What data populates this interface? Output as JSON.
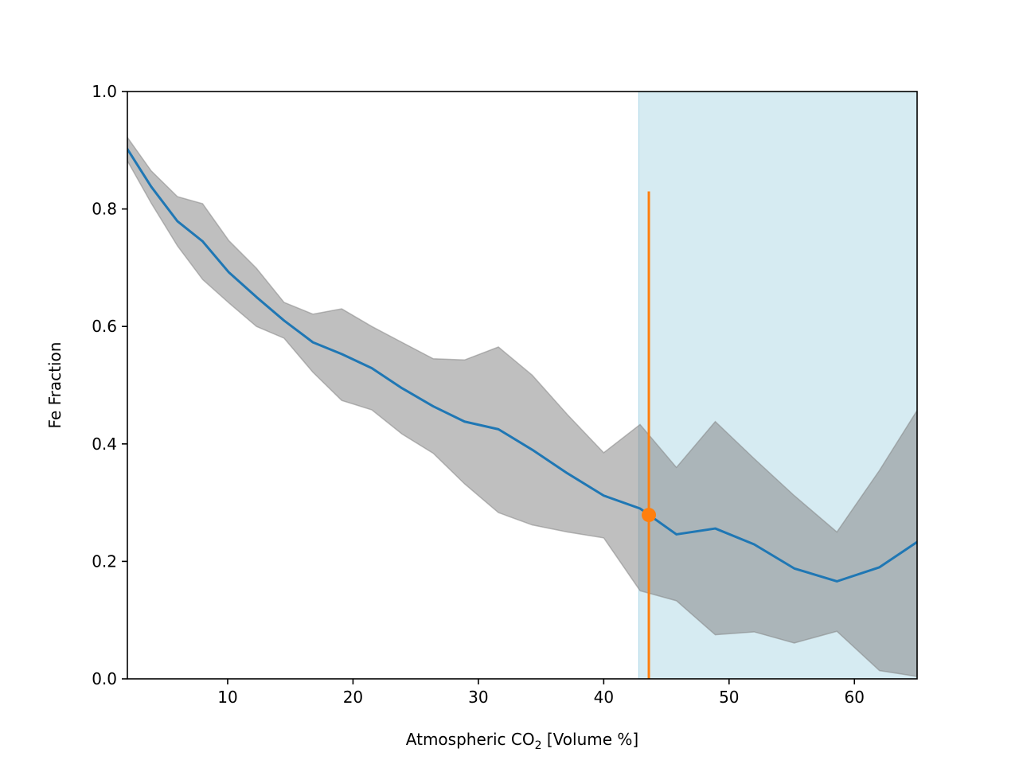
{
  "chart_data": {
    "type": "line",
    "xlabel": {
      "prefix": "Atmospheric CO",
      "subscript": "2",
      "suffix": " [Volume %]"
    },
    "ylabel": "Fe Fraction",
    "xlim": [
      2,
      65
    ],
    "ylim": [
      0.0,
      1.0
    ],
    "xticks": [
      10,
      20,
      30,
      40,
      50,
      60
    ],
    "yticks": [
      0.0,
      0.2,
      0.4,
      0.6,
      0.8,
      1.0
    ],
    "ytick_labels": [
      "0.0",
      "0.2",
      "0.4",
      "0.6",
      "0.8",
      "1.0"
    ],
    "grid": false,
    "legend": "none",
    "colors": {
      "line": "#1f77b4",
      "band": "#808080",
      "region": "#add8e6",
      "marker": "#ff7f0e"
    },
    "shaded_region": {
      "x_start": 42.8,
      "x_end": 65
    },
    "series": [
      {
        "x": [
          2.0,
          3.9,
          6.0,
          8.0,
          10.1,
          12.3,
          14.5,
          16.8,
          19.1,
          21.5,
          23.9,
          26.4,
          28.9,
          31.6,
          34.3,
          37.1,
          40.0,
          42.9,
          45.8,
          48.9,
          52.0,
          55.2,
          58.6,
          62.0,
          65.0
        ],
        "y": [
          0.902,
          0.838,
          0.779,
          0.745,
          0.692,
          0.65,
          0.61,
          0.573,
          0.553,
          0.529,
          0.495,
          0.464,
          0.438,
          0.425,
          0.39,
          0.35,
          0.312,
          0.29,
          0.246,
          0.256,
          0.229,
          0.188,
          0.166,
          0.19,
          0.233
        ],
        "lower": [
          0.882,
          0.81,
          0.737,
          0.68,
          0.64,
          0.6,
          0.58,
          0.522,
          0.474,
          0.458,
          0.417,
          0.384,
          0.332,
          0.283,
          0.262,
          0.25,
          0.24,
          0.15,
          0.133,
          0.075,
          0.08,
          0.061,
          0.081,
          0.014,
          0.004
        ],
        "upper": [
          0.922,
          0.865,
          0.821,
          0.809,
          0.746,
          0.699,
          0.641,
          0.621,
          0.63,
          0.6,
          0.573,
          0.545,
          0.543,
          0.565,
          0.517,
          0.45,
          0.385,
          0.433,
          0.36,
          0.438,
          0.375,
          0.312,
          0.25,
          0.355,
          0.457
        ]
      }
    ],
    "marker_point": {
      "x": 43.6,
      "y": 0.279,
      "err_low": 0.0,
      "err_high": 0.83
    }
  }
}
